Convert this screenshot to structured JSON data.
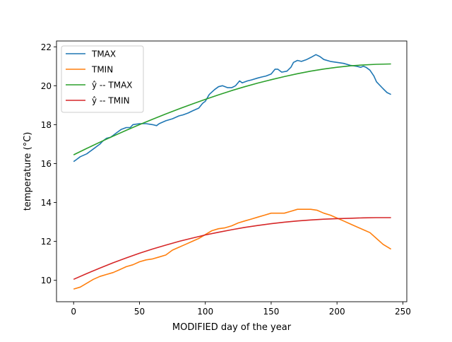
{
  "chart_data": {
    "type": "line",
    "xlabel": "MODIFIED day of the year",
    "ylabel": "temperature (°C)",
    "xlim": [
      -13,
      253
    ],
    "ylim": [
      8.9,
      22.3
    ],
    "xticks": [
      0,
      50,
      100,
      150,
      200,
      250
    ],
    "yticks": [
      10,
      12,
      14,
      16,
      18,
      20,
      22
    ],
    "grid": false,
    "legend_position": "top-left",
    "series": [
      {
        "name": "TMAX",
        "color": "#1f77b4",
        "points": [
          [
            0,
            16.1
          ],
          [
            2,
            16.2
          ],
          [
            5,
            16.35
          ],
          [
            10,
            16.5
          ],
          [
            15,
            16.75
          ],
          [
            20,
            17.0
          ],
          [
            22,
            17.15
          ],
          [
            25,
            17.3
          ],
          [
            28,
            17.35
          ],
          [
            30,
            17.45
          ],
          [
            33,
            17.6
          ],
          [
            36,
            17.75
          ],
          [
            40,
            17.85
          ],
          [
            43,
            17.85
          ],
          [
            45,
            18.0
          ],
          [
            50,
            18.05
          ],
          [
            55,
            18.05
          ],
          [
            60,
            18.0
          ],
          [
            63,
            17.95
          ],
          [
            65,
            18.05
          ],
          [
            70,
            18.2
          ],
          [
            75,
            18.3
          ],
          [
            80,
            18.45
          ],
          [
            83,
            18.5
          ],
          [
            87,
            18.6
          ],
          [
            90,
            18.7
          ],
          [
            95,
            18.85
          ],
          [
            98,
            19.1
          ],
          [
            100,
            19.2
          ],
          [
            103,
            19.55
          ],
          [
            107,
            19.8
          ],
          [
            110,
            19.95
          ],
          [
            113,
            20.0
          ],
          [
            117,
            19.9
          ],
          [
            120,
            19.9
          ],
          [
            123,
            20.0
          ],
          [
            126,
            20.25
          ],
          [
            128,
            20.15
          ],
          [
            132,
            20.25
          ],
          [
            135,
            20.3
          ],
          [
            140,
            20.4
          ],
          [
            143,
            20.45
          ],
          [
            146,
            20.5
          ],
          [
            150,
            20.6
          ],
          [
            153,
            20.85
          ],
          [
            155,
            20.85
          ],
          [
            158,
            20.7
          ],
          [
            162,
            20.75
          ],
          [
            165,
            20.95
          ],
          [
            167,
            21.2
          ],
          [
            170,
            21.3
          ],
          [
            173,
            21.25
          ],
          [
            177,
            21.35
          ],
          [
            180,
            21.45
          ],
          [
            184,
            21.6
          ],
          [
            187,
            21.5
          ],
          [
            190,
            21.35
          ],
          [
            195,
            21.25
          ],
          [
            200,
            21.2
          ],
          [
            205,
            21.15
          ],
          [
            210,
            21.05
          ],
          [
            215,
            21.0
          ],
          [
            218,
            20.95
          ],
          [
            220,
            21.0
          ],
          [
            222,
            20.95
          ],
          [
            225,
            20.8
          ],
          [
            228,
            20.5
          ],
          [
            230,
            20.2
          ],
          [
            235,
            19.85
          ],
          [
            238,
            19.65
          ],
          [
            241,
            19.55
          ]
        ]
      },
      {
        "name": "TMIN",
        "color": "#ff7f0e",
        "points": [
          [
            0,
            9.55
          ],
          [
            5,
            9.65
          ],
          [
            10,
            9.85
          ],
          [
            15,
            10.05
          ],
          [
            20,
            10.2
          ],
          [
            25,
            10.3
          ],
          [
            30,
            10.4
          ],
          [
            35,
            10.55
          ],
          [
            40,
            10.7
          ],
          [
            45,
            10.8
          ],
          [
            50,
            10.95
          ],
          [
            55,
            11.05
          ],
          [
            60,
            11.1
          ],
          [
            65,
            11.2
          ],
          [
            70,
            11.3
          ],
          [
            75,
            11.55
          ],
          [
            80,
            11.7
          ],
          [
            85,
            11.85
          ],
          [
            90,
            12.0
          ],
          [
            95,
            12.15
          ],
          [
            100,
            12.35
          ],
          [
            105,
            12.55
          ],
          [
            110,
            12.65
          ],
          [
            115,
            12.7
          ],
          [
            120,
            12.8
          ],
          [
            125,
            12.95
          ],
          [
            130,
            13.05
          ],
          [
            135,
            13.15
          ],
          [
            140,
            13.25
          ],
          [
            145,
            13.35
          ],
          [
            150,
            13.45
          ],
          [
            155,
            13.45
          ],
          [
            160,
            13.45
          ],
          [
            165,
            13.55
          ],
          [
            170,
            13.65
          ],
          [
            175,
            13.65
          ],
          [
            180,
            13.65
          ],
          [
            185,
            13.6
          ],
          [
            190,
            13.45
          ],
          [
            195,
            13.35
          ],
          [
            200,
            13.2
          ],
          [
            205,
            13.05
          ],
          [
            210,
            12.9
          ],
          [
            215,
            12.75
          ],
          [
            220,
            12.6
          ],
          [
            225,
            12.45
          ],
          [
            230,
            12.15
          ],
          [
            235,
            11.85
          ],
          [
            241,
            11.6
          ]
        ]
      },
      {
        "name": "ŷ -- TMAX",
        "color": "#2ca02c",
        "points": [
          [
            0,
            16.45
          ],
          [
            10,
            16.78
          ],
          [
            20,
            17.1
          ],
          [
            30,
            17.41
          ],
          [
            40,
            17.71
          ],
          [
            50,
            18.0
          ],
          [
            60,
            18.28
          ],
          [
            70,
            18.55
          ],
          [
            80,
            18.81
          ],
          [
            90,
            19.06
          ],
          [
            100,
            19.3
          ],
          [
            110,
            19.53
          ],
          [
            120,
            19.75
          ],
          [
            130,
            19.95
          ],
          [
            140,
            20.14
          ],
          [
            150,
            20.31
          ],
          [
            160,
            20.47
          ],
          [
            170,
            20.62
          ],
          [
            180,
            20.75
          ],
          [
            190,
            20.86
          ],
          [
            200,
            20.95
          ],
          [
            210,
            21.02
          ],
          [
            220,
            21.07
          ],
          [
            230,
            21.1
          ],
          [
            241,
            21.12
          ]
        ]
      },
      {
        "name": "ŷ -- TMIN",
        "color": "#d62728",
        "points": [
          [
            0,
            10.05
          ],
          [
            10,
            10.35
          ],
          [
            20,
            10.63
          ],
          [
            30,
            10.9
          ],
          [
            40,
            11.15
          ],
          [
            50,
            11.39
          ],
          [
            60,
            11.61
          ],
          [
            70,
            11.81
          ],
          [
            80,
            12.0
          ],
          [
            90,
            12.17
          ],
          [
            100,
            12.33
          ],
          [
            110,
            12.47
          ],
          [
            120,
            12.6
          ],
          [
            130,
            12.72
          ],
          [
            140,
            12.82
          ],
          [
            150,
            12.91
          ],
          [
            160,
            12.99
          ],
          [
            170,
            13.05
          ],
          [
            180,
            13.1
          ],
          [
            190,
            13.14
          ],
          [
            200,
            13.17
          ],
          [
            210,
            13.19
          ],
          [
            220,
            13.21
          ],
          [
            230,
            13.22
          ],
          [
            241,
            13.22
          ]
        ]
      }
    ]
  }
}
